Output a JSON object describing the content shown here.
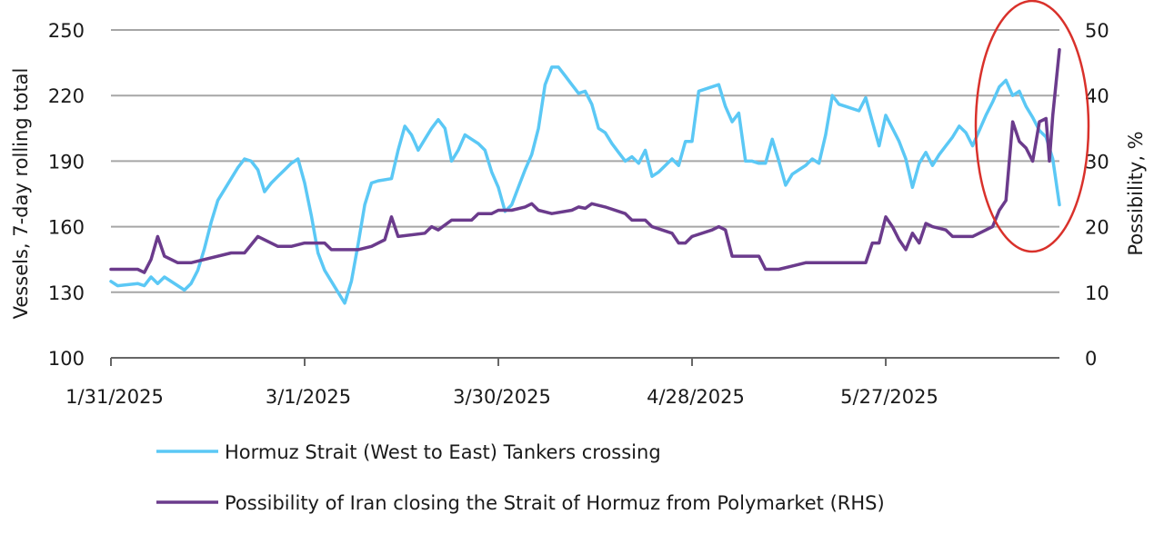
{
  "chart_data": {
    "type": "line",
    "ylabel": "Vessels, 7-day rolling total",
    "y2label": "Possibility, %",
    "ylim": [
      100,
      250
    ],
    "y2lim": [
      0,
      50
    ],
    "yticks": [
      "100",
      "130",
      "160",
      "190",
      "220",
      "250"
    ],
    "y2ticks": [
      "0",
      "10",
      "20",
      "30",
      "40",
      "50"
    ],
    "xlim": [
      "2025-01-31",
      "2025-06-21"
    ],
    "xticks": [
      {
        "label": "1/31/2025",
        "date": "2025-01-31"
      },
      {
        "label": "3/1/2025",
        "date": "2025-03-01"
      },
      {
        "label": "3/30/2025",
        "date": "2025-03-30"
      },
      {
        "label": "4/28/2025",
        "date": "2025-04-28"
      },
      {
        "label": "5/27/2025",
        "date": "2025-05-27"
      }
    ],
    "grid": true,
    "legend_placement": "bottom",
    "series": [
      {
        "name": "Hormuz Strait (West to East) Tankers crossing",
        "axis": "left",
        "color": "#5bc8f5",
        "points": [
          [
            "2025-01-31",
            135
          ],
          [
            "2025-02-01",
            133
          ],
          [
            "2025-02-04",
            134
          ],
          [
            "2025-02-05",
            133
          ],
          [
            "2025-02-06",
            137
          ],
          [
            "2025-02-07",
            134
          ],
          [
            "2025-02-08",
            137
          ],
          [
            "2025-02-11",
            131
          ],
          [
            "2025-02-12",
            134
          ],
          [
            "2025-02-13",
            140
          ],
          [
            "2025-02-14",
            150
          ],
          [
            "2025-02-15",
            162
          ],
          [
            "2025-02-16",
            172
          ],
          [
            "2025-02-18",
            182
          ],
          [
            "2025-02-19",
            187
          ],
          [
            "2025-02-20",
            191
          ],
          [
            "2025-02-21",
            190
          ],
          [
            "2025-02-22",
            186
          ],
          [
            "2025-02-23",
            176
          ],
          [
            "2025-02-24",
            180
          ],
          [
            "2025-02-25",
            183
          ],
          [
            "2025-02-26",
            186
          ],
          [
            "2025-02-27",
            189
          ],
          [
            "2025-02-28",
            191
          ],
          [
            "2025-03-01",
            180
          ],
          [
            "2025-03-02",
            165
          ],
          [
            "2025-03-03",
            148
          ],
          [
            "2025-03-04",
            140
          ],
          [
            "2025-03-05",
            135
          ],
          [
            "2025-03-06",
            130
          ],
          [
            "2025-03-07",
            125
          ],
          [
            "2025-03-08",
            135
          ],
          [
            "2025-03-09",
            152
          ],
          [
            "2025-03-10",
            170
          ],
          [
            "2025-03-11",
            180
          ],
          [
            "2025-03-12",
            181
          ],
          [
            "2025-03-14",
            182
          ],
          [
            "2025-03-15",
            195
          ],
          [
            "2025-03-16",
            206
          ],
          [
            "2025-03-17",
            202
          ],
          [
            "2025-03-18",
            195
          ],
          [
            "2025-03-19",
            200
          ],
          [
            "2025-03-20",
            205
          ],
          [
            "2025-03-21",
            209
          ],
          [
            "2025-03-22",
            205
          ],
          [
            "2025-03-23",
            190
          ],
          [
            "2025-03-24",
            195
          ],
          [
            "2025-03-25",
            202
          ],
          [
            "2025-03-26",
            200
          ],
          [
            "2025-03-27",
            198
          ],
          [
            "2025-03-28",
            195
          ],
          [
            "2025-03-29",
            185
          ],
          [
            "2025-03-30",
            178
          ],
          [
            "2025-03-31",
            167
          ],
          [
            "2025-04-01",
            170
          ],
          [
            "2025-04-02",
            178
          ],
          [
            "2025-04-03",
            186
          ],
          [
            "2025-04-04",
            193
          ],
          [
            "2025-04-05",
            205
          ],
          [
            "2025-04-06",
            225
          ],
          [
            "2025-04-07",
            233
          ],
          [
            "2025-04-08",
            233
          ],
          [
            "2025-04-09",
            229
          ],
          [
            "2025-04-10",
            225
          ],
          [
            "2025-04-11",
            221
          ],
          [
            "2025-04-12",
            222
          ],
          [
            "2025-04-13",
            216
          ],
          [
            "2025-04-14",
            205
          ],
          [
            "2025-04-15",
            203
          ],
          [
            "2025-04-16",
            198
          ],
          [
            "2025-04-17",
            194
          ],
          [
            "2025-04-18",
            190
          ],
          [
            "2025-04-19",
            192
          ],
          [
            "2025-04-20",
            189
          ],
          [
            "2025-04-21",
            195
          ],
          [
            "2025-04-22",
            183
          ],
          [
            "2025-04-23",
            185
          ],
          [
            "2025-04-24",
            188
          ],
          [
            "2025-04-25",
            191
          ],
          [
            "2025-04-26",
            188
          ],
          [
            "2025-04-27",
            199
          ],
          [
            "2025-04-28",
            199
          ],
          [
            "2025-04-29",
            222
          ],
          [
            "2025-05-01",
            224
          ],
          [
            "2025-05-02",
            225
          ],
          [
            "2025-05-03",
            215
          ],
          [
            "2025-05-04",
            208
          ],
          [
            "2025-05-05",
            212
          ],
          [
            "2025-05-06",
            190
          ],
          [
            "2025-05-07",
            190
          ],
          [
            "2025-05-08",
            189
          ],
          [
            "2025-05-09",
            189
          ],
          [
            "2025-05-10",
            200
          ],
          [
            "2025-05-11",
            190
          ],
          [
            "2025-05-12",
            179
          ],
          [
            "2025-05-13",
            184
          ],
          [
            "2025-05-14",
            186
          ],
          [
            "2025-05-15",
            188
          ],
          [
            "2025-05-16",
            191
          ],
          [
            "2025-05-17",
            189
          ],
          [
            "2025-05-18",
            202
          ],
          [
            "2025-05-19",
            220
          ],
          [
            "2025-05-20",
            216
          ],
          [
            "2025-05-21",
            215
          ],
          [
            "2025-05-23",
            213
          ],
          [
            "2025-05-24",
            219
          ],
          [
            "2025-05-25",
            208
          ],
          [
            "2025-05-26",
            197
          ],
          [
            "2025-05-27",
            211
          ],
          [
            "2025-05-28",
            205
          ],
          [
            "2025-05-29",
            199
          ],
          [
            "2025-05-30",
            191
          ],
          [
            "2025-05-31",
            178
          ],
          [
            "2025-06-01",
            189
          ],
          [
            "2025-06-02",
            194
          ],
          [
            "2025-06-03",
            188
          ],
          [
            "2025-06-04",
            193
          ],
          [
            "2025-06-05",
            197
          ],
          [
            "2025-06-06",
            201
          ],
          [
            "2025-06-07",
            206
          ],
          [
            "2025-06-08",
            203
          ],
          [
            "2025-06-09",
            197
          ],
          [
            "2025-06-10",
            204
          ],
          [
            "2025-06-11",
            211
          ],
          [
            "2025-06-12",
            217
          ],
          [
            "2025-06-13",
            224
          ],
          [
            "2025-06-14",
            227
          ],
          [
            "2025-06-15",
            220
          ],
          [
            "2025-06-16",
            222
          ],
          [
            "2025-06-17",
            215
          ],
          [
            "2025-06-18",
            210
          ],
          [
            "2025-06-19",
            204
          ],
          [
            "2025-06-20",
            201
          ],
          [
            "2025-06-21",
            191
          ],
          [
            "2025-06-22",
            170
          ]
        ]
      },
      {
        "name": "Possibility of Iran closing the Strait of Hormuz from Polymarket (RHS)",
        "axis": "right",
        "color": "#6b3b8c",
        "points": [
          [
            "2025-01-31",
            13.5
          ],
          [
            "2025-02-04",
            13.5
          ],
          [
            "2025-02-05",
            13
          ],
          [
            "2025-02-06",
            15
          ],
          [
            "2025-02-07",
            18.5
          ],
          [
            "2025-02-08",
            15.5
          ],
          [
            "2025-02-10",
            14.5
          ],
          [
            "2025-02-12",
            14.5
          ],
          [
            "2025-02-14",
            15
          ],
          [
            "2025-02-18",
            16
          ],
          [
            "2025-02-20",
            16
          ],
          [
            "2025-02-22",
            18.5
          ],
          [
            "2025-02-25",
            17
          ],
          [
            "2025-02-27",
            17
          ],
          [
            "2025-03-01",
            17.5
          ],
          [
            "2025-03-04",
            17.5
          ],
          [
            "2025-03-05",
            16.5
          ],
          [
            "2025-03-09",
            16.5
          ],
          [
            "2025-03-11",
            17
          ],
          [
            "2025-03-13",
            18
          ],
          [
            "2025-03-14",
            21.5
          ],
          [
            "2025-03-15",
            18.5
          ],
          [
            "2025-03-19",
            19
          ],
          [
            "2025-03-20",
            20
          ],
          [
            "2025-03-21",
            19.5
          ],
          [
            "2025-03-23",
            21
          ],
          [
            "2025-03-26",
            21
          ],
          [
            "2025-03-27",
            22
          ],
          [
            "2025-03-29",
            22
          ],
          [
            "2025-03-30",
            22.5
          ],
          [
            "2025-04-01",
            22.5
          ],
          [
            "2025-04-03",
            23
          ],
          [
            "2025-04-04",
            23.5
          ],
          [
            "2025-04-05",
            22.5
          ],
          [
            "2025-04-07",
            22
          ],
          [
            "2025-04-10",
            22.5
          ],
          [
            "2025-04-11",
            23
          ],
          [
            "2025-04-12",
            22.8
          ],
          [
            "2025-04-13",
            23.5
          ],
          [
            "2025-04-15",
            23
          ],
          [
            "2025-04-18",
            22
          ],
          [
            "2025-04-19",
            21
          ],
          [
            "2025-04-21",
            21
          ],
          [
            "2025-04-22",
            20
          ],
          [
            "2025-04-25",
            19
          ],
          [
            "2025-04-26",
            17.5
          ],
          [
            "2025-04-27",
            17.5
          ],
          [
            "2025-04-28",
            18.5
          ],
          [
            "2025-05-01",
            19.5
          ],
          [
            "2025-05-02",
            20
          ],
          [
            "2025-05-03",
            19.5
          ],
          [
            "2025-05-04",
            15.5
          ],
          [
            "2025-05-06",
            15.5
          ],
          [
            "2025-05-08",
            15.5
          ],
          [
            "2025-05-09",
            13.5
          ],
          [
            "2025-05-11",
            13.5
          ],
          [
            "2025-05-13",
            14
          ],
          [
            "2025-05-15",
            14.5
          ],
          [
            "2025-05-24",
            14.5
          ],
          [
            "2025-05-25",
            17.5
          ],
          [
            "2025-05-26",
            17.5
          ],
          [
            "2025-05-27",
            21.5
          ],
          [
            "2025-05-28",
            20
          ],
          [
            "2025-05-29",
            18
          ],
          [
            "2025-05-30",
            16.5
          ],
          [
            "2025-05-31",
            19
          ],
          [
            "2025-06-01",
            17.5
          ],
          [
            "2025-06-02",
            20.5
          ],
          [
            "2025-06-03",
            20
          ],
          [
            "2025-06-05",
            19.5
          ],
          [
            "2025-06-06",
            18.5
          ],
          [
            "2025-06-09",
            18.5
          ],
          [
            "2025-06-11",
            19.5
          ],
          [
            "2025-06-12",
            20
          ],
          [
            "2025-06-13",
            22.5
          ],
          [
            "2025-06-14",
            24
          ],
          [
            "2025-06-15",
            36
          ],
          [
            "2025-06-16",
            33
          ],
          [
            "2025-06-17",
            32
          ],
          [
            "2025-06-18",
            30
          ],
          [
            "2025-06-19",
            36
          ],
          [
            "2025-06-20",
            36.5
          ],
          [
            "2025-06-20.5",
            30
          ],
          [
            "2025-06-21",
            37
          ],
          [
            "2025-06-22",
            47
          ]
        ]
      }
    ]
  },
  "legend": {
    "items": [
      {
        "label": "Hormuz Strait (West to East) Tankers crossing",
        "color": "#5bc8f5"
      },
      {
        "label": "Possibility of Iran closing the Strait of Hormuz from Polymarket (RHS)",
        "color": "#6b3b8c"
      }
    ]
  },
  "annotation": {
    "shape": "ellipse",
    "color": "#d9312b"
  }
}
